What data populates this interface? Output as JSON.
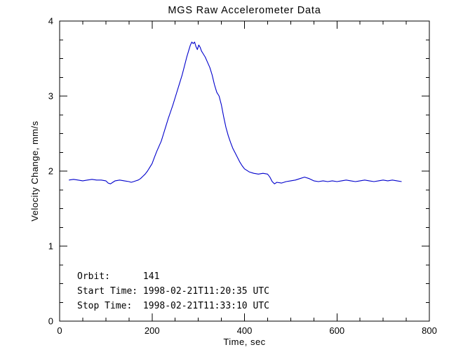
{
  "chart_data": {
    "type": "line",
    "title": "MGS Raw Accelerometer Data",
    "xlabel": "Time, sec",
    "ylabel": "Velocity Change, mm/s",
    "xlim": [
      0,
      800
    ],
    "ylim": [
      0,
      4
    ],
    "xticks": [
      0,
      200,
      400,
      600,
      800
    ],
    "yticks": [
      0,
      1,
      2,
      3,
      4
    ],
    "x_minor_step": 50,
    "y_minor_step": 0.25,
    "grid": "off",
    "legend": "none",
    "line_color": "#0000cc",
    "axis_color": "#000000",
    "background_color": "#ffffff",
    "annotations": [
      "Orbit:      141",
      "Start Time: 1998-02-21T11:20:35 UTC",
      "Stop Time:  1998-02-21T11:33:10 UTC"
    ],
    "series": [
      {
        "name": "velocity_change_mm_per_s",
        "x": [
          20,
          30,
          40,
          50,
          60,
          70,
          80,
          90,
          100,
          105,
          110,
          115,
          120,
          130,
          140,
          150,
          155,
          160,
          165,
          170,
          175,
          180,
          185,
          190,
          195,
          200,
          205,
          210,
          215,
          220,
          225,
          230,
          235,
          240,
          245,
          250,
          255,
          260,
          265,
          270,
          275,
          280,
          283,
          286,
          289,
          292,
          295,
          298,
          301,
          304,
          307,
          310,
          315,
          320,
          325,
          330,
          335,
          340,
          345,
          350,
          355,
          360,
          365,
          370,
          375,
          380,
          385,
          390,
          395,
          400,
          410,
          420,
          430,
          440,
          450,
          455,
          460,
          465,
          470,
          480,
          490,
          500,
          510,
          520,
          530,
          540,
          550,
          560,
          570,
          580,
          590,
          600,
          610,
          620,
          630,
          640,
          650,
          660,
          670,
          680,
          690,
          700,
          710,
          720,
          730,
          740
        ],
        "y": [
          1.88,
          1.89,
          1.88,
          1.87,
          1.88,
          1.89,
          1.88,
          1.88,
          1.87,
          1.84,
          1.83,
          1.85,
          1.87,
          1.88,
          1.87,
          1.86,
          1.85,
          1.86,
          1.87,
          1.88,
          1.9,
          1.93,
          1.96,
          2.0,
          2.05,
          2.1,
          2.18,
          2.26,
          2.33,
          2.4,
          2.5,
          2.6,
          2.7,
          2.79,
          2.88,
          2.98,
          3.08,
          3.18,
          3.28,
          3.4,
          3.52,
          3.62,
          3.68,
          3.72,
          3.7,
          3.72,
          3.66,
          3.62,
          3.68,
          3.65,
          3.6,
          3.57,
          3.52,
          3.45,
          3.38,
          3.28,
          3.15,
          3.05,
          3.0,
          2.88,
          2.72,
          2.58,
          2.47,
          2.38,
          2.3,
          2.24,
          2.18,
          2.12,
          2.07,
          2.03,
          1.99,
          1.97,
          1.96,
          1.97,
          1.96,
          1.92,
          1.86,
          1.83,
          1.85,
          1.84,
          1.86,
          1.87,
          1.88,
          1.9,
          1.92,
          1.9,
          1.87,
          1.86,
          1.87,
          1.86,
          1.87,
          1.86,
          1.87,
          1.88,
          1.87,
          1.86,
          1.87,
          1.88,
          1.87,
          1.86,
          1.87,
          1.88,
          1.87,
          1.88,
          1.87,
          1.86
        ]
      }
    ]
  }
}
